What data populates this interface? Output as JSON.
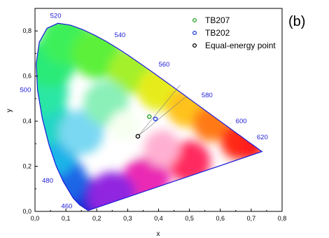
{
  "panel_label": "(b)",
  "chart_data": {
    "type": "scatter",
    "title": "",
    "xlabel": "x",
    "ylabel": "y",
    "xlim": [
      0.0,
      0.8
    ],
    "ylim": [
      0.0,
      0.9
    ],
    "x_ticks": [
      "0,0",
      "0,1",
      "0,2",
      "0,3",
      "0,4",
      "0,5",
      "0,6",
      "0,7",
      "0,8"
    ],
    "y_ticks": [
      "0,0",
      "0,2",
      "0,4",
      "0,6",
      "0,8"
    ],
    "legend_position": "top-right",
    "series": [
      {
        "name": "TB207",
        "color": "#2aa02a",
        "x": [
          0.37
        ],
        "y": [
          0.42
        ]
      },
      {
        "name": "TB202",
        "color": "#1f3fd6",
        "x": [
          0.39
        ],
        "y": [
          0.41
        ]
      },
      {
        "name": "Equal-energy point",
        "color": "#000000",
        "x": [
          0.333
        ],
        "y": [
          0.333
        ]
      }
    ],
    "wavelength_labels": [
      {
        "text": "460",
        "x": 0.144,
        "y": 0.029
      },
      {
        "text": "480",
        "x": 0.091,
        "y": 0.133
      },
      {
        "text": "500",
        "x": 0.008,
        "y": 0.538
      },
      {
        "text": "520",
        "x": 0.074,
        "y": 0.834
      },
      {
        "text": "540",
        "x": 0.23,
        "y": 0.754
      },
      {
        "text": "560",
        "x": 0.373,
        "y": 0.624
      },
      {
        "text": "580",
        "x": 0.512,
        "y": 0.487
      },
      {
        "text": "600",
        "x": 0.627,
        "y": 0.372
      },
      {
        "text": "620",
        "x": 0.691,
        "y": 0.308
      }
    ],
    "guide_lines": [
      {
        "from": [
          0.333,
          0.333
        ],
        "to": [
          0.47,
          0.56
        ]
      },
      {
        "from": [
          0.333,
          0.333
        ],
        "to": [
          0.49,
          0.51
        ]
      }
    ]
  }
}
